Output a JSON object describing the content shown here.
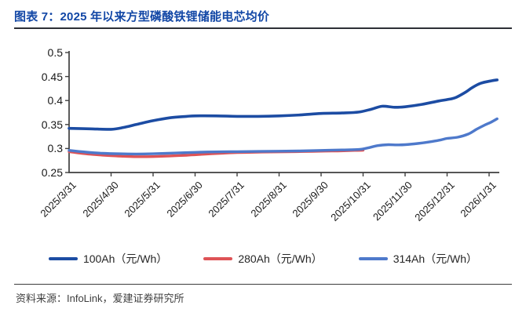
{
  "header": {
    "title": "图表 7：2025 年以来方型磷酸铁锂储能电芯均价"
  },
  "footer": {
    "source": "资料来源：InfoLink，爱建证券研究所"
  },
  "colors": {
    "title_blue": "#1247a6",
    "axis": "#3f3f3f",
    "series_100ah": "#1c4ca3",
    "series_280ah": "#de5356",
    "series_314ah": "#4e79cb"
  },
  "chart_data": {
    "type": "line",
    "title": "2025 年以来方型磷酸铁锂储能电芯均价",
    "xlabel": "",
    "ylabel": "",
    "unit": "元/Wh",
    "ylim": [
      0.25,
      0.5
    ],
    "yticks": [
      0.5,
      0.45,
      0.4,
      0.35,
      0.3,
      0.25
    ],
    "grid": false,
    "legend_position": "bottom",
    "categories": [
      "2025/3/31",
      "2025/4/30",
      "2025/5/31",
      "2025/6/30",
      "2025/7/31",
      "2025/8/31",
      "2025/9/30",
      "2025/10/31",
      "2025/11/30",
      "2025/12/31",
      "2026/1/31"
    ],
    "x_unit_note": "points x = months since 2025/3/31 (category index); data extends ~0.2 month past last tick",
    "series": [
      {
        "name": "100Ah（元/Wh）",
        "color": "#1c4ca3",
        "width": 3.6,
        "points": [
          [
            0,
            0.342
          ],
          [
            0.5,
            0.341
          ],
          [
            1,
            0.34
          ],
          [
            1.3,
            0.344
          ],
          [
            1.6,
            0.35
          ],
          [
            2,
            0.358
          ],
          [
            2.4,
            0.364
          ],
          [
            2.8,
            0.367
          ],
          [
            3,
            0.368
          ],
          [
            3.5,
            0.368
          ],
          [
            4,
            0.367
          ],
          [
            4.5,
            0.367
          ],
          [
            5,
            0.368
          ],
          [
            5.5,
            0.37
          ],
          [
            6,
            0.373
          ],
          [
            6.5,
            0.374
          ],
          [
            6.9,
            0.376
          ],
          [
            7.2,
            0.382
          ],
          [
            7.45,
            0.388
          ],
          [
            7.75,
            0.386
          ],
          [
            8,
            0.387
          ],
          [
            8.4,
            0.392
          ],
          [
            8.8,
            0.399
          ],
          [
            9,
            0.402
          ],
          [
            9.2,
            0.406
          ],
          [
            9.45,
            0.418
          ],
          [
            9.6,
            0.427
          ],
          [
            9.8,
            0.436
          ],
          [
            10.05,
            0.441
          ],
          [
            10.19,
            0.443
          ]
        ]
      },
      {
        "name": "280Ah（元/Wh）",
        "color": "#de5356",
        "width": 3.4,
        "points": [
          [
            0,
            0.2935
          ],
          [
            0.3,
            0.29
          ],
          [
            0.6,
            0.2875
          ],
          [
            1,
            0.285
          ],
          [
            1.3,
            0.2838
          ],
          [
            1.6,
            0.283
          ],
          [
            2,
            0.2832
          ],
          [
            2.4,
            0.2845
          ],
          [
            2.8,
            0.286
          ],
          [
            3.2,
            0.288
          ],
          [
            3.6,
            0.29
          ],
          [
            4,
            0.2915
          ],
          [
            4.4,
            0.2922
          ],
          [
            4.8,
            0.2928
          ],
          [
            5.2,
            0.2932
          ],
          [
            5.6,
            0.2938
          ],
          [
            6,
            0.2945
          ],
          [
            6.4,
            0.295
          ],
          [
            6.8,
            0.296
          ],
          [
            7,
            0.2965
          ]
        ]
      },
      {
        "name": "314Ah（元/Wh）",
        "color": "#4e79cb",
        "width": 3.4,
        "points": [
          [
            0,
            0.296
          ],
          [
            0.4,
            0.2925
          ],
          [
            0.8,
            0.29
          ],
          [
            1.2,
            0.289
          ],
          [
            1.6,
            0.2885
          ],
          [
            2,
            0.289
          ],
          [
            2.5,
            0.2905
          ],
          [
            3,
            0.292
          ],
          [
            3.5,
            0.293
          ],
          [
            4,
            0.2935
          ],
          [
            4.5,
            0.294
          ],
          [
            5,
            0.2945
          ],
          [
            5.5,
            0.295
          ],
          [
            6,
            0.296
          ],
          [
            6.5,
            0.297
          ],
          [
            6.9,
            0.298
          ],
          [
            7.1,
            0.301
          ],
          [
            7.35,
            0.306
          ],
          [
            7.6,
            0.308
          ],
          [
            7.8,
            0.3075
          ],
          [
            8,
            0.308
          ],
          [
            8.3,
            0.3105
          ],
          [
            8.6,
            0.314
          ],
          [
            8.85,
            0.318
          ],
          [
            9,
            0.321
          ],
          [
            9.25,
            0.3235
          ],
          [
            9.5,
            0.33
          ],
          [
            9.7,
            0.34
          ],
          [
            9.9,
            0.349
          ],
          [
            10.05,
            0.355
          ],
          [
            10.19,
            0.362
          ]
        ]
      }
    ]
  }
}
